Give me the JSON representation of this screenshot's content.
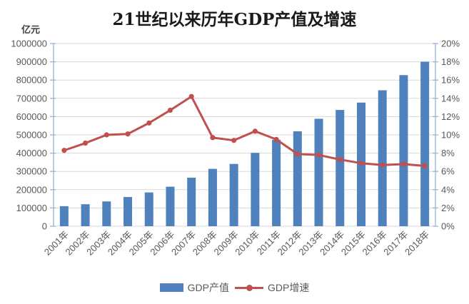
{
  "title": "21世纪以来历年GDP产值及增速",
  "left_axis_unit": "亿元",
  "legend": {
    "items": [
      {
        "label": "GDP产值",
        "swatch": "bar",
        "color": "#4F81BD"
      },
      {
        "label": "GDP增速",
        "swatch": "line-marker",
        "color": "#C0504D"
      }
    ]
  },
  "colors": {
    "bar": "#4F81BD",
    "line": "#C0504D",
    "gridline": "#D9D9D9",
    "axis_line": "#95B3D7",
    "tick_label": "#595959",
    "title_text": "#1A1A1A"
  },
  "chart_data": {
    "type": "bar",
    "combo": "bar+line",
    "title": "21世纪以来历年GDP产值及增速",
    "categories": [
      "2001年",
      "2002年",
      "2003年",
      "2004年",
      "2005年",
      "2006年",
      "2007年",
      "2008年",
      "2009年",
      "2010年",
      "2011年",
      "2012年",
      "2013年",
      "2014年",
      "2015年",
      "2016年",
      "2017年",
      "2018年"
    ],
    "series": [
      {
        "name": "GDP产值",
        "type": "bar",
        "axis": "left",
        "unit": "亿元",
        "color": "#4F81BD",
        "values": [
          109655,
          120333,
          135823,
          159878,
          184937,
          216314,
          265810,
          314045,
          340903,
          401513,
          473104,
          519470,
          588019,
          636463,
          676708,
          744127,
          827122,
          900309
        ]
      },
      {
        "name": "GDP增速",
        "type": "line",
        "axis": "right",
        "unit": "%",
        "color": "#C0504D",
        "values": [
          8.3,
          9.1,
          10.0,
          10.1,
          11.3,
          12.7,
          14.2,
          9.7,
          9.4,
          10.4,
          9.5,
          7.9,
          7.8,
          7.3,
          6.9,
          6.7,
          6.8,
          6.6
        ]
      }
    ],
    "left_axis": {
      "label": "亿元",
      "min": 0,
      "max": 1000000,
      "step": 100000,
      "tick_labels": [
        "0",
        "100000",
        "200000",
        "300000",
        "400000",
        "500000",
        "600000",
        "700000",
        "800000",
        "900000",
        "1000000"
      ]
    },
    "right_axis": {
      "label": "",
      "min": 0,
      "max": 20,
      "step": 2,
      "format": "percent",
      "tick_labels": [
        "0%",
        "2%",
        "4%",
        "6%",
        "8%",
        "10%",
        "12%",
        "14%",
        "16%",
        "18%",
        "20%"
      ]
    },
    "grid": true,
    "legend_position": "bottom",
    "x_tick_rotation": -45
  }
}
